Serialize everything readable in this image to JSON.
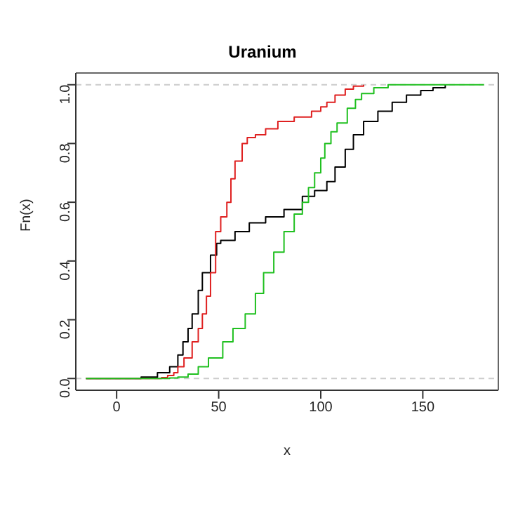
{
  "chart_data": {
    "type": "step",
    "title": "Uranium",
    "xlabel": "x",
    "ylabel": "Fn(x)",
    "xlim": [
      -20,
      187
    ],
    "xticks": [
      0,
      50,
      100,
      150
    ],
    "ylim": [
      -0.04,
      1.04
    ],
    "yticks": [
      {
        "value": 0,
        "label": "0.0"
      },
      {
        "value": 0.2,
        "label": "0.2"
      },
      {
        "value": 0.4,
        "label": "0.4"
      },
      {
        "value": 0.6,
        "label": "0.6"
      },
      {
        "value": 0.8,
        "label": "0.8"
      },
      {
        "value": 1,
        "label": "1.0"
      }
    ],
    "ref_lines": [
      {
        "axis": "y",
        "value": 0,
        "color": "#cccccc",
        "line_style": "dashed"
      },
      {
        "axis": "y",
        "value": 1,
        "color": "#cccccc",
        "line_style": "dashed"
      }
    ],
    "series": [
      {
        "color": "#000000",
        "x": [
          -15,
          12,
          20,
          26,
          30,
          32.5,
          35,
          37,
          40,
          42,
          46,
          49,
          51,
          58,
          65,
          73,
          82,
          91,
          97,
          103,
          107,
          112,
          116,
          121,
          128,
          135,
          142,
          149,
          155,
          161
        ],
        "values": [
          0,
          0.005,
          0.02,
          0.04,
          0.08,
          0.125,
          0.17,
          0.22,
          0.3,
          0.36,
          0.42,
          0.46,
          0.47,
          0.5,
          0.53,
          0.55,
          0.575,
          0.62,
          0.64,
          0.67,
          0.72,
          0.78,
          0.83,
          0.875,
          0.91,
          0.94,
          0.965,
          0.98,
          0.99,
          1
        ]
      },
      {
        "color": "#df2020",
        "x": [
          -15,
          22,
          25,
          28,
          30,
          33,
          37,
          40,
          42,
          44,
          46,
          48.5,
          51,
          54,
          56,
          58,
          61.5,
          64,
          68,
          73,
          79,
          87,
          95.5,
          100,
          103,
          107,
          112,
          116,
          121
        ],
        "values": [
          0,
          0.003,
          0.01,
          0.02,
          0.04,
          0.07,
          0.125,
          0.17,
          0.22,
          0.28,
          0.36,
          0.5,
          0.55,
          0.6,
          0.68,
          0.74,
          0.8,
          0.82,
          0.83,
          0.85,
          0.875,
          0.89,
          0.91,
          0.925,
          0.94,
          0.965,
          0.985,
          0.995,
          1
        ]
      },
      {
        "color": "#20c020",
        "x": [
          -15,
          26,
          30,
          35,
          40,
          45,
          52,
          57,
          63,
          68,
          72,
          77,
          82,
          87,
          91,
          94,
          97,
          100,
          102,
          105,
          108,
          113,
          117,
          120,
          126,
          133,
          180
        ],
        "values": [
          0,
          0.002,
          0.005,
          0.015,
          0.04,
          0.07,
          0.125,
          0.17,
          0.22,
          0.29,
          0.36,
          0.43,
          0.5,
          0.56,
          0.6,
          0.65,
          0.7,
          0.75,
          0.8,
          0.84,
          0.87,
          0.92,
          0.95,
          0.97,
          0.99,
          1,
          1
        ]
      }
    ]
  }
}
